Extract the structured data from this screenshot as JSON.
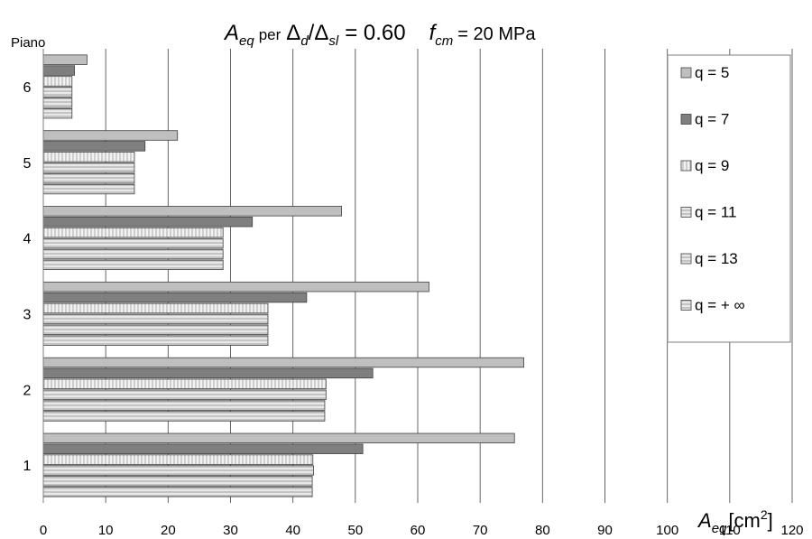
{
  "chart_data": {
    "type": "bar",
    "orientation": "horizontal",
    "title": {
      "sym": "A",
      "sub": "eq",
      "per": "per",
      "delta_d": "Δ",
      "sub_d": "d",
      "slash": "/",
      "delta_sl": "Δ",
      "sub_sl": "sl",
      "ratio": "= 0.60",
      "f": "f",
      "sub_cm": "cm",
      "fcm_value": "= 20 MPa"
    },
    "ylabel": "Piano",
    "xlabel": {
      "sym": "A",
      "sub": "eq",
      "unit_open": "[cm",
      "sup": "2",
      "unit_close": "]"
    },
    "categories": [
      "1",
      "2",
      "3",
      "4",
      "5",
      "6"
    ],
    "xlim": [
      0,
      120
    ],
    "xticks": [
      "0",
      "10",
      "20",
      "30",
      "40",
      "50",
      "60",
      "70",
      "80",
      "90",
      "100",
      "110",
      "120"
    ],
    "grid": "vertical",
    "legend_position": "right",
    "series": [
      {
        "name": "q = 5",
        "values": [
          75.5,
          77.0,
          61.8,
          47.8,
          21.5,
          7.0
        ],
        "color": "#bfbfbf",
        "pattern": "solid"
      },
      {
        "name": "q = 7",
        "values": [
          51.2,
          52.8,
          42.2,
          33.5,
          16.3,
          5.0
        ],
        "color": "#7f7f7f",
        "pattern": "solid"
      },
      {
        "name": "q = 9",
        "values": [
          43.2,
          45.3,
          36.0,
          28.8,
          14.6,
          4.6
        ],
        "color": "#efefef",
        "pattern": "vertical"
      },
      {
        "name": "q = 11",
        "values": [
          43.3,
          45.3,
          36.0,
          28.8,
          14.6,
          4.6
        ],
        "color": "#e6e6e6",
        "pattern": "horizontal"
      },
      {
        "name": "q = 13",
        "values": [
          43.1,
          45.1,
          36.0,
          28.8,
          14.6,
          4.6
        ],
        "color": "#d9d9d9",
        "pattern": "horizontal"
      },
      {
        "name": "q =  + ∞",
        "values": [
          43.1,
          45.1,
          36.0,
          28.8,
          14.6,
          4.6
        ],
        "color": "#cfcfcf",
        "pattern": "horizontal"
      }
    ]
  }
}
